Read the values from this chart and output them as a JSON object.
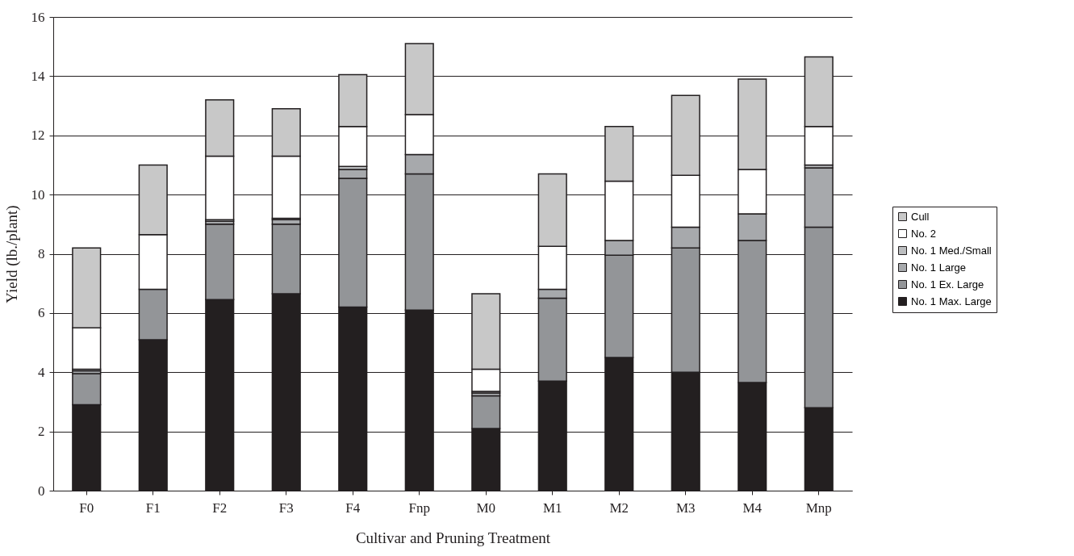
{
  "chart_data": {
    "type": "bar",
    "stacked": true,
    "xlabel": "Cultivar and Pruning Treatment",
    "ylabel": "Yield (lb./plant)",
    "categories": [
      "F0",
      "F1",
      "F2",
      "F3",
      "F4",
      "Fnp",
      "M0",
      "M1",
      "M2",
      "M3",
      "M4",
      "Mnp"
    ],
    "series": [
      {
        "name": "No. 1 Max. Large",
        "color": "#231f20",
        "values": [
          2.9,
          5.1,
          6.45,
          6.65,
          6.2,
          6.1,
          2.1,
          3.7,
          4.5,
          4.0,
          3.65,
          2.8
        ]
      },
      {
        "name": "No. 1 Ex. Large",
        "color": "#939598",
        "values": [
          1.05,
          1.7,
          2.55,
          2.35,
          4.35,
          4.6,
          1.1,
          2.8,
          3.45,
          4.2,
          4.8,
          6.1
        ]
      },
      {
        "name": "No. 1 Large",
        "color": "#a7a9ac",
        "values": [
          0.1,
          null,
          0.1,
          0.15,
          0.3,
          0.65,
          0.1,
          0.3,
          0.5,
          0.7,
          0.9,
          2.0
        ]
      },
      {
        "name": "No. 1 Med./Small",
        "color": "#bcbec0",
        "values": [
          0.05,
          null,
          0.05,
          0.05,
          0.1,
          null,
          0.05,
          null,
          null,
          null,
          null,
          0.1
        ]
      },
      {
        "name": "No. 2",
        "color": "#ffffff",
        "values": [
          1.4,
          1.85,
          2.15,
          2.1,
          1.35,
          1.35,
          0.75,
          1.45,
          2.0,
          1.75,
          1.5,
          1.3
        ]
      },
      {
        "name": "Cull",
        "color": "#c8c8c8",
        "values": [
          2.7,
          2.35,
          1.9,
          1.6,
          1.75,
          2.4,
          2.55,
          2.45,
          1.85,
          2.7,
          3.05,
          2.35
        ]
      }
    ],
    "ylim": [
      0,
      16
    ],
    "yticks": [
      0,
      2,
      4,
      6,
      8,
      10,
      12,
      14,
      16
    ],
    "grid": "y",
    "legend": "right"
  }
}
